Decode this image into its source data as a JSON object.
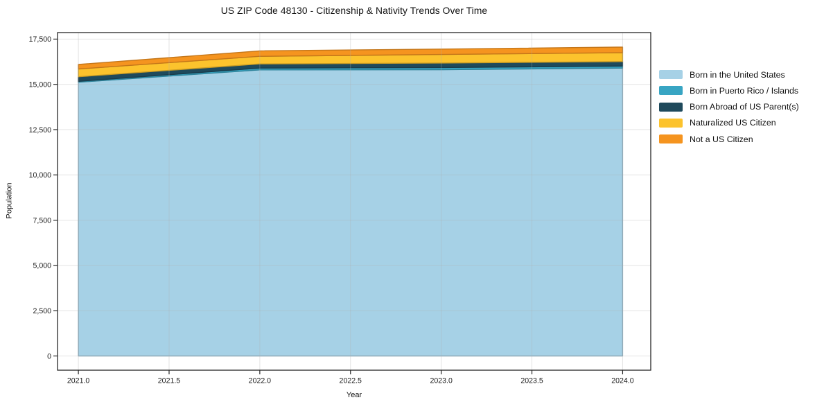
{
  "title": "US ZIP Code 48130 - Citizenship & Nativity Trends Over Time",
  "chart_data": {
    "type": "area",
    "stacked": true,
    "title": "US ZIP Code 48130 - Citizenship & Nativity Trends Over Time",
    "xlabel": "Year",
    "ylabel": "Population",
    "x": [
      2021,
      2022,
      2023,
      2024
    ],
    "series": [
      {
        "name": "Born in the United States",
        "color": "#a6d1e6",
        "values": [
          15120,
          15800,
          15810,
          15900
        ]
      },
      {
        "name": "Born in Puerto Rico / Islands",
        "color": "#38a5c3",
        "values": [
          50,
          100,
          120,
          110
        ]
      },
      {
        "name": "Born Abroad of US Parent(s)",
        "color": "#1f4a5c",
        "values": [
          250,
          230,
          250,
          250
        ]
      },
      {
        "name": "Naturalized US Citizen",
        "color": "#fcc32d",
        "values": [
          430,
          420,
          470,
          490
        ]
      },
      {
        "name": "Not a US Citizen",
        "color": "#f5941f",
        "values": [
          250,
          300,
          300,
          310
        ]
      }
    ],
    "x_ticks": [
      "2021.0",
      "2021.5",
      "2022.0",
      "2022.5",
      "2023.0",
      "2023.5",
      "2024.0"
    ],
    "x_tick_values": [
      2021.0,
      2021.5,
      2022.0,
      2022.5,
      2023.0,
      2023.5,
      2024.0
    ],
    "y_ticks": [
      "0",
      "2,500",
      "5,000",
      "7,500",
      "10,000",
      "12,500",
      "15,000",
      "17,500"
    ],
    "y_tick_values": [
      0,
      2500,
      5000,
      7500,
      10000,
      12500,
      15000,
      17500
    ],
    "xlim": [
      2020.885,
      2024.155
    ],
    "ylim": [
      -785,
      17860
    ],
    "grid": true,
    "legend_position": "right",
    "axis_color": "#262626",
    "grid_color": "#b0b0b0",
    "text_color": "#1a1a1a"
  }
}
